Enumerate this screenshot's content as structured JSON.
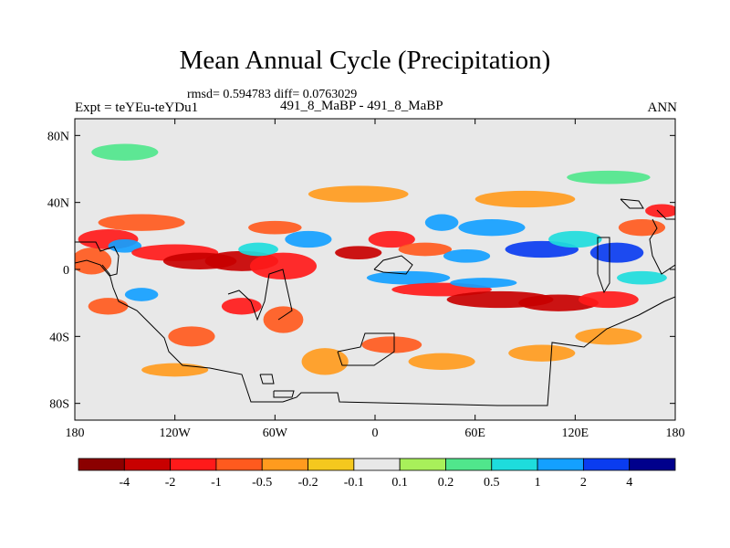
{
  "chart_data": {
    "type": "heatmap",
    "title": "Mean Annual Cycle (Precipitation)",
    "stats": "rmsd= 0.594783 diff= 0.0763029",
    "left_label": "Expt = teYEu-teYDu1",
    "center_label": "491_8_MaBP - 491_8_MaBP",
    "right_label": "ANN",
    "x_ticks": [
      {
        "lon": -180,
        "label": "180"
      },
      {
        "lon": -120,
        "label": "120W"
      },
      {
        "lon": -60,
        "label": "60W"
      },
      {
        "lon": 0,
        "label": "0"
      },
      {
        "lon": 60,
        "label": "60E"
      },
      {
        "lon": 120,
        "label": "120E"
      },
      {
        "lon": 180,
        "label": "180"
      }
    ],
    "y_ticks": [
      {
        "lat": 80,
        "label": "80N"
      },
      {
        "lat": 40,
        "label": "40N"
      },
      {
        "lat": 0,
        "label": "0"
      },
      {
        "lat": -40,
        "label": "40S"
      },
      {
        "lat": -80,
        "label": "80S"
      }
    ],
    "xlim": [
      -180,
      180
    ],
    "ylim": [
      -90,
      90
    ],
    "colorbar": {
      "colors": [
        "#8b0000",
        "#c80000",
        "#ff1a1a",
        "#ff5a1e",
        "#ff9b1e",
        "#f5c81e",
        "#e8e8e8",
        "#a8f05a",
        "#50e68c",
        "#1edcdc",
        "#14a0ff",
        "#0a3cf0",
        "#00008c"
      ],
      "levels": [
        "-4",
        "-2",
        "-1",
        "-0.5",
        "-0.2",
        "-0.1",
        "0.1",
        "0.2",
        "0.5",
        "1",
        "2",
        "4"
      ]
    },
    "anomaly_blobs": [
      {
        "lon": -170,
        "lat": 5,
        "rlon": 12,
        "rlat": 8,
        "value": -0.6
      },
      {
        "lon": -160,
        "lat": 18,
        "rlon": 18,
        "rlat": 6,
        "value": -1.2
      },
      {
        "lon": -150,
        "lat": 14,
        "rlon": 10,
        "rlat": 4,
        "value": 1.2
      },
      {
        "lon": -140,
        "lat": 28,
        "rlon": 26,
        "rlat": 5,
        "value": -0.7
      },
      {
        "lon": -120,
        "lat": 10,
        "rlon": 26,
        "rlat": 5,
        "value": -1.2
      },
      {
        "lon": -105,
        "lat": 5,
        "rlon": 22,
        "rlat": 5,
        "value": -2.5
      },
      {
        "lon": -80,
        "lat": 5,
        "rlon": 22,
        "rlat": 6,
        "value": -2.0
      },
      {
        "lon": -55,
        "lat": 2,
        "rlon": 20,
        "rlat": 8,
        "value": -1.5
      },
      {
        "lon": -70,
        "lat": 12,
        "rlon": 12,
        "rlat": 4,
        "value": 0.6
      },
      {
        "lon": -60,
        "lat": 25,
        "rlon": 16,
        "rlat": 4,
        "value": -0.6
      },
      {
        "lon": -40,
        "lat": 18,
        "rlon": 14,
        "rlat": 5,
        "value": 1.2
      },
      {
        "lon": -10,
        "lat": 10,
        "rlon": 14,
        "rlat": 4,
        "value": -2.0
      },
      {
        "lon": 10,
        "lat": 18,
        "rlon": 14,
        "rlat": 5,
        "value": -1.0
      },
      {
        "lon": 30,
        "lat": 12,
        "rlon": 16,
        "rlat": 4,
        "value": -0.7
      },
      {
        "lon": 40,
        "lat": 28,
        "rlon": 10,
        "rlat": 5,
        "value": 1.5
      },
      {
        "lon": 55,
        "lat": 8,
        "rlon": 14,
        "rlat": 4,
        "value": 1.5
      },
      {
        "lon": 70,
        "lat": 25,
        "rlon": 20,
        "rlat": 5,
        "value": 1.2
      },
      {
        "lon": 100,
        "lat": 12,
        "rlon": 22,
        "rlat": 5,
        "value": 2.2
      },
      {
        "lon": 120,
        "lat": 18,
        "rlon": 16,
        "rlat": 5,
        "value": 1.0
      },
      {
        "lon": 145,
        "lat": 10,
        "rlon": 16,
        "rlat": 6,
        "value": 2.5
      },
      {
        "lon": 160,
        "lat": 25,
        "rlon": 14,
        "rlat": 5,
        "value": -0.8
      },
      {
        "lon": 172,
        "lat": 35,
        "rlon": 10,
        "rlat": 4,
        "value": -1.2
      },
      {
        "lon": 20,
        "lat": -5,
        "rlon": 25,
        "rlat": 4,
        "value": 1.2
      },
      {
        "lon": 40,
        "lat": -12,
        "rlon": 30,
        "rlat": 4,
        "value": -1.2
      },
      {
        "lon": 75,
        "lat": -18,
        "rlon": 32,
        "rlat": 5,
        "value": -2.0
      },
      {
        "lon": 110,
        "lat": -20,
        "rlon": 24,
        "rlat": 5,
        "value": -2.5
      },
      {
        "lon": 140,
        "lat": -18,
        "rlon": 18,
        "rlat": 5,
        "value": -1.5
      },
      {
        "lon": 65,
        "lat": -8,
        "rlon": 20,
        "rlat": 3,
        "value": 1.2
      },
      {
        "lon": 160,
        "lat": -5,
        "rlon": 15,
        "rlat": 4,
        "value": 1.0
      },
      {
        "lon": -160,
        "lat": -22,
        "rlon": 12,
        "rlat": 5,
        "value": -0.6
      },
      {
        "lon": -140,
        "lat": -15,
        "rlon": 10,
        "rlat": 4,
        "value": 1.2
      },
      {
        "lon": -110,
        "lat": -40,
        "rlon": 14,
        "rlat": 6,
        "value": -0.7
      },
      {
        "lon": -80,
        "lat": -22,
        "rlon": 12,
        "rlat": 5,
        "value": -1.2
      },
      {
        "lon": -55,
        "lat": -30,
        "rlon": 12,
        "rlat": 8,
        "value": -0.5
      },
      {
        "lon": -30,
        "lat": -55,
        "rlon": 14,
        "rlat": 8,
        "value": -0.3
      },
      {
        "lon": 10,
        "lat": -45,
        "rlon": 18,
        "rlat": 5,
        "value": -0.5
      },
      {
        "lon": 40,
        "lat": -55,
        "rlon": 20,
        "rlat": 5,
        "value": -0.3
      },
      {
        "lon": 100,
        "lat": -50,
        "rlon": 20,
        "rlat": 5,
        "value": -0.3
      },
      {
        "lon": 140,
        "lat": -40,
        "rlon": 20,
        "rlat": 5,
        "value": -0.4
      },
      {
        "lon": -120,
        "lat": -60,
        "rlon": 20,
        "rlat": 4,
        "value": -0.3
      },
      {
        "lon": -10,
        "lat": 45,
        "rlon": 30,
        "rlat": 5,
        "value": -0.4
      },
      {
        "lon": 90,
        "lat": 42,
        "rlon": 30,
        "rlat": 5,
        "value": -0.3
      },
      {
        "lon": 140,
        "lat": 55,
        "rlon": 25,
        "rlat": 4,
        "value": 0.3
      },
      {
        "lon": -150,
        "lat": 70,
        "rlon": 20,
        "rlat": 5,
        "value": 0.3
      }
    ]
  }
}
